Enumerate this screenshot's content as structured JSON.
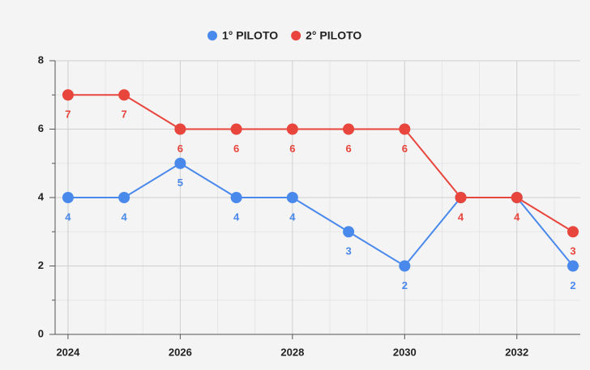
{
  "chart_data": {
    "type": "line",
    "x": [
      2024,
      2025,
      2026,
      2027,
      2028,
      2029,
      2030,
      2031,
      2032,
      2033
    ],
    "series": [
      {
        "name": "1° PILOTO",
        "color": "#4a89ec",
        "values": [
          4,
          4,
          5,
          4,
          4,
          3,
          2,
          4,
          4,
          2
        ],
        "value_labels": [
          "4",
          "4",
          "5",
          "4",
          "4",
          "3",
          "2",
          null,
          null,
          "2"
        ]
      },
      {
        "name": "2° PILOTO",
        "color": "#e8453c",
        "values": [
          7,
          7,
          6,
          6,
          6,
          6,
          6,
          4,
          4,
          3
        ],
        "value_labels": [
          "7",
          "7",
          "6",
          "6",
          "6",
          "6",
          "6",
          "4",
          "4",
          "3"
        ]
      }
    ],
    "xlim": [
      2023.77,
      2033.13
    ],
    "xticks": [
      2024,
      2026,
      2028,
      2030,
      2032
    ],
    "minor_xticks": [
      2024.667,
      2025.333,
      2026.667,
      2027.333,
      2028.667,
      2029.333,
      2030.667,
      2031.333,
      2032.667
    ],
    "ylim": [
      0,
      8
    ],
    "yticks": [
      0,
      2,
      4,
      6,
      8
    ],
    "minor_yticks": [
      1,
      3,
      5,
      7
    ],
    "grid": true,
    "legend": "top"
  }
}
